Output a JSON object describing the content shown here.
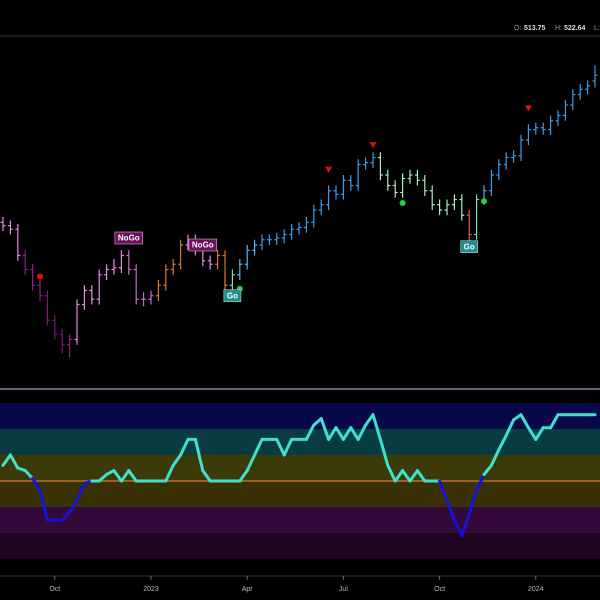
{
  "chart_data": {
    "type": "ohlc",
    "header_labels": [
      "O:",
      "H:",
      "L:"
    ],
    "categories": [
      null,
      null,
      null,
      null,
      null,
      null,
      null,
      "Oct",
      null,
      null,
      null,
      null,
      null,
      null,
      null,
      null,
      null,
      null,
      null,
      null,
      "2023",
      null,
      null,
      null,
      null,
      null,
      null,
      null,
      null,
      null,
      null,
      null,
      null,
      "Apr",
      null,
      null,
      null,
      null,
      null,
      null,
      null,
      null,
      null,
      null,
      null,
      null,
      "Jul",
      null,
      null,
      null,
      null,
      null,
      null,
      null,
      null,
      null,
      null,
      null,
      null,
      "Oct",
      null,
      null,
      null,
      null,
      null,
      null,
      null,
      null,
      null,
      null,
      null,
      null,
      "2024",
      null,
      null,
      null,
      null,
      null,
      null,
      null,
      null
    ],
    "open": [
      433,
      431,
      429,
      414,
      406,
      397,
      391,
      377,
      369,
      363,
      366,
      386,
      394,
      389,
      403,
      406,
      407,
      414,
      406,
      389,
      389,
      391,
      397,
      406,
      409,
      420,
      423,
      417,
      411,
      409,
      414,
      397,
      403,
      409,
      417,
      420,
      423,
      423,
      424,
      426,
      429,
      430,
      433,
      440,
      443,
      451,
      449,
      457,
      454,
      466,
      467,
      470,
      460,
      454,
      450,
      458,
      460,
      457,
      451,
      443,
      440,
      443,
      446,
      437,
      426,
      446,
      451,
      460,
      466,
      470,
      471,
      480,
      486,
      487,
      486,
      491,
      494,
      500,
      506,
      509,
      513.75
    ],
    "high": [
      436,
      434,
      432,
      417,
      409,
      400,
      394,
      380,
      372,
      369,
      389,
      397,
      397,
      406,
      409,
      412,
      417,
      417,
      409,
      393,
      394,
      400,
      409,
      412,
      423,
      426,
      426,
      420,
      414,
      417,
      417,
      406,
      412,
      420,
      423,
      426,
      426,
      427,
      429,
      432,
      433,
      436,
      443,
      446,
      454,
      454,
      460,
      460,
      469,
      470,
      473,
      473,
      463,
      457,
      461,
      463,
      463,
      460,
      454,
      446,
      446,
      449,
      449,
      440,
      449,
      454,
      463,
      469,
      473,
      474,
      483,
      489,
      490,
      490,
      494,
      497,
      503,
      509,
      512,
      514,
      522.64
    ],
    "low": [
      428,
      426,
      411,
      403,
      394,
      388,
      374,
      366,
      358,
      356,
      363,
      383,
      386,
      386,
      400,
      403,
      404,
      403,
      386,
      385,
      386,
      388,
      394,
      403,
      406,
      417,
      414,
      408,
      406,
      406,
      394,
      394,
      400,
      406,
      414,
      417,
      420,
      420,
      421,
      423,
      426,
      427,
      430,
      437,
      440,
      446,
      446,
      451,
      451,
      463,
      464,
      457,
      451,
      447,
      447,
      455,
      454,
      448,
      440,
      437,
      437,
      440,
      434,
      420,
      423,
      443,
      448,
      457,
      463,
      467,
      468,
      477,
      483,
      483,
      483,
      488,
      491,
      497,
      503,
      506,
      510
    ],
    "close": [
      431,
      429,
      414,
      406,
      397,
      391,
      377,
      369,
      363,
      366,
      386,
      394,
      389,
      403,
      406,
      407,
      414,
      406,
      389,
      389,
      391,
      397,
      406,
      409,
      420,
      423,
      417,
      411,
      409,
      414,
      397,
      403,
      409,
      417,
      420,
      423,
      423,
      424,
      426,
      429,
      430,
      433,
      440,
      443,
      451,
      449,
      457,
      454,
      466,
      467,
      470,
      460,
      454,
      450,
      458,
      460,
      457,
      451,
      443,
      440,
      443,
      446,
      437,
      426,
      446,
      451,
      460,
      466,
      470,
      471,
      480,
      486,
      487,
      486,
      491,
      494,
      500,
      506,
      509,
      511,
      517
    ],
    "bar_colors": [
      "#e88be6",
      "#e88be6",
      "#e88be6",
      "#8a1f8c",
      "#8a1f8c",
      "#8a1f8c",
      "#7a1680",
      "#7a1680",
      "#7a1680",
      "#8a1f8c",
      "#e88be6",
      "#e88be6",
      "#e88be6",
      "#e88be6",
      "#e88be6",
      "#e88be6",
      "#e88be6",
      "#c86ec6",
      "#c86ec6",
      "#c86ec6",
      "#c86ec6",
      "#d9782c",
      "#d9782c",
      "#d9782c",
      "#d9782c",
      "#e88be6",
      "#e88be6",
      "#e88be6",
      "#e88be6",
      "#d9782c",
      "#d9782c",
      "#7be0a0",
      "#5ab4ef",
      "#5ab4ef",
      "#5ab4ef",
      "#3a9be8",
      "#3a9be8",
      "#3a9be8",
      "#3a9be8",
      "#3a9be8",
      "#3a9be8",
      "#3a9be8",
      "#3a9be8",
      "#3a9be8",
      "#3a9be8",
      "#3a9be8",
      "#3a9be8",
      "#3a9be8",
      "#3a9be8",
      "#3a9be8",
      "#3a9be8",
      "#a8f0c0",
      "#a8f0c0",
      "#a8f0c0",
      "#a8f0c0",
      "#a8f0c0",
      "#a8f0c0",
      "#a8f0c0",
      "#a8f0c0",
      "#a8f0c0",
      "#a8f0c0",
      "#a8f0c0",
      "#a8f0c0",
      "#e0603a",
      "#7be0a0",
      "#5ab4ef",
      "#3a9be8",
      "#3a9be8",
      "#3a9be8",
      "#3a9be8",
      "#3a9be8",
      "#3a9be8",
      "#3a9be8",
      "#3a9be8",
      "#3a9be8",
      "#3a9be8",
      "#3a9be8",
      "#3a9be8",
      "#3a9be8",
      "#3a9be8",
      "#3a9be8"
    ],
    "ylim": [
      340,
      540
    ],
    "markers": [
      {
        "shape": "triangle",
        "bar": 44,
        "value": 463,
        "color": "#e01010"
      },
      {
        "shape": "triangle",
        "bar": 50,
        "value": 477,
        "color": "#e01010"
      },
      {
        "shape": "triangle",
        "bar": 71,
        "value": 498,
        "color": "#e01010"
      },
      {
        "shape": "dot",
        "bar": 5,
        "value": 402,
        "color": "#e01010"
      },
      {
        "shape": "dot",
        "bar": 32,
        "value": 395,
        "color": "#20d040"
      },
      {
        "shape": "dot",
        "bar": 54,
        "value": 444,
        "color": "#20d040"
      },
      {
        "shape": "dot",
        "bar": 65,
        "value": 445,
        "color": "#20d040"
      }
    ],
    "annotations": [
      {
        "text": "NoGo",
        "bar": 17,
        "value": 424,
        "color": "#6b0f5e"
      },
      {
        "text": "NoGo",
        "bar": 27,
        "value": 420,
        "color": "#6b0f5e"
      },
      {
        "text": "Go",
        "bar": 31,
        "value": 391,
        "color": "#1d8f8f"
      },
      {
        "text": "Go",
        "bar": 63,
        "value": 419,
        "color": "#1d8f8f"
      }
    ],
    "oscillator": {
      "values": [
        1.2,
        2.0,
        1.0,
        0.8,
        0.2,
        -0.7,
        -3.0,
        -3.0,
        -3.0,
        -2.4,
        -1.5,
        -0.2,
        0,
        0,
        0.5,
        0.8,
        0,
        0.8,
        0,
        0,
        0,
        0,
        0,
        1.2,
        2.0,
        3.2,
        3.2,
        0.8,
        0,
        0,
        0,
        0,
        0,
        0.8,
        2.0,
        3.2,
        3.2,
        3.2,
        2.0,
        3.2,
        3.2,
        3.2,
        4.3,
        4.8,
        3.2,
        4.1,
        3.2,
        4.1,
        3.2,
        4.3,
        5.1,
        3.2,
        1.2,
        0,
        0.8,
        0,
        0.8,
        0,
        0,
        0,
        -1.5,
        -3.0,
        -4.2,
        -2.6,
        -0.7,
        0.5,
        1.2,
        2.4,
        3.5,
        4.7,
        5.1,
        4.1,
        3.2,
        4.1,
        4.1,
        5.1,
        5.1,
        5.1,
        5.1,
        5.1,
        5.1
      ],
      "color": "#40e0d0",
      "negative_color": "#1414d8",
      "zero_color": "#d9782c",
      "ylim": [
        -6,
        6
      ],
      "bands": [
        {
          "from": 4,
          "to": 6,
          "color": "#06084a"
        },
        {
          "from": 2,
          "to": 4,
          "color": "#083c40"
        },
        {
          "from": 0,
          "to": 2,
          "color": "#3c3a08"
        },
        {
          "from": -2,
          "to": 0,
          "color": "#3a3006"
        },
        {
          "from": -4,
          "to": -2,
          "color": "#340838"
        },
        {
          "from": -6,
          "to": -4,
          "color": "#1e0520"
        }
      ]
    }
  }
}
